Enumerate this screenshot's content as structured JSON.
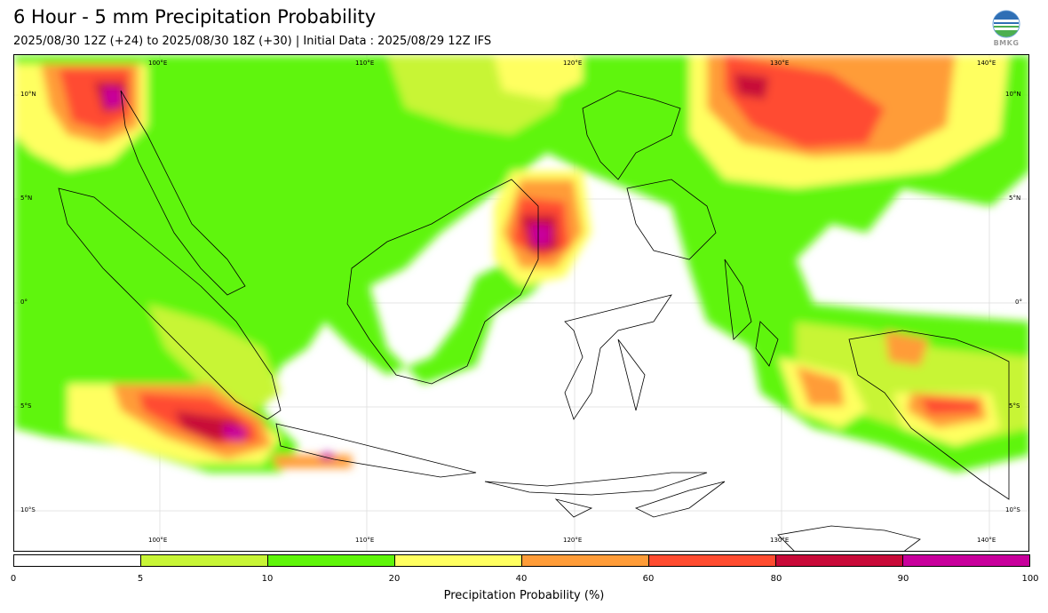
{
  "header": {
    "title": "6 Hour - 5 mm Precipitation Probability",
    "subtitle": "2025/08/30 12Z (+24) to 2025/08/30 18Z (+30) | Initial Data : 2025/08/29 12Z IFS"
  },
  "logo": {
    "text": "BMKG",
    "icon": "bmkg-logo-icon"
  },
  "map": {
    "lon_ticks_top": [
      "100°E",
      "110°E",
      "120°E",
      "130°E",
      "140°E"
    ],
    "lon_ticks_bottom": [
      "100°E",
      "110°E",
      "120°E",
      "130°E",
      "140°E"
    ],
    "lat_ticks_left": [
      "10°N",
      "5°N",
      "0°",
      "5°S",
      "10°S"
    ],
    "lat_ticks_right": [
      "10°N",
      "5°N",
      "0°",
      "5°S",
      "10°S"
    ]
  },
  "colorbar": {
    "title": "Precipitation Probability (%)",
    "labels": [
      "0",
      "5",
      "10",
      "20",
      "40",
      "60",
      "80",
      "90",
      "100"
    ],
    "colors": [
      "#ffffff",
      "#c8f536",
      "#5ff50a",
      "#ffff60",
      "#ff9c38",
      "#ff4c30",
      "#c80a38",
      "#c8009c"
    ]
  }
}
